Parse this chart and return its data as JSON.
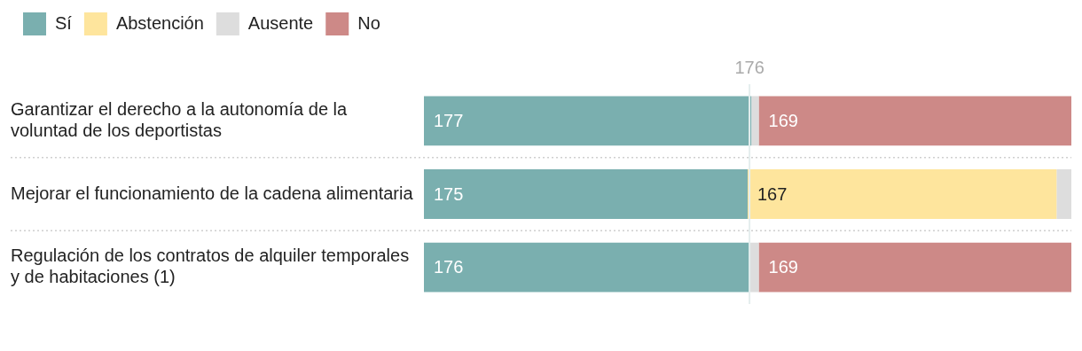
{
  "chart_data": {
    "type": "bar",
    "orientation": "horizontal",
    "stacked": true,
    "categories": [
      "Garantizar el derecho a la autonomía de la voluntad de los deportistas",
      "Mejorar el funcionamiento de la cadena alimentaria",
      "Regulación de los contratos de alquiler temporales y de habitaciones (1)"
    ],
    "series": [
      {
        "name": "Sí",
        "color": "#7aafaf",
        "values": [
          177,
          175,
          176
        ],
        "value_labels": [
          "177",
          "175",
          "176"
        ]
      },
      {
        "name": "Abstención",
        "color": "#fee59d",
        "values": [
          0,
          167,
          0
        ],
        "value_labels": [
          null,
          "167",
          null
        ]
      },
      {
        "name": "Ausente",
        "color": "#dddddd",
        "values": [
          4,
          8,
          5
        ],
        "value_labels": [
          null,
          null,
          null
        ]
      },
      {
        "name": "No",
        "color": "#cd8987",
        "values": [
          169,
          0,
          169
        ],
        "value_labels": [
          "169",
          null,
          "169"
        ]
      }
    ],
    "xlim": [
      0,
      350
    ],
    "tick_labels": "y",
    "grid": false,
    "legend": "top left",
    "ref_lines": [
      {
        "axis": "x",
        "value": 176,
        "label": "176",
        "color": "#e4eeee"
      }
    ]
  }
}
